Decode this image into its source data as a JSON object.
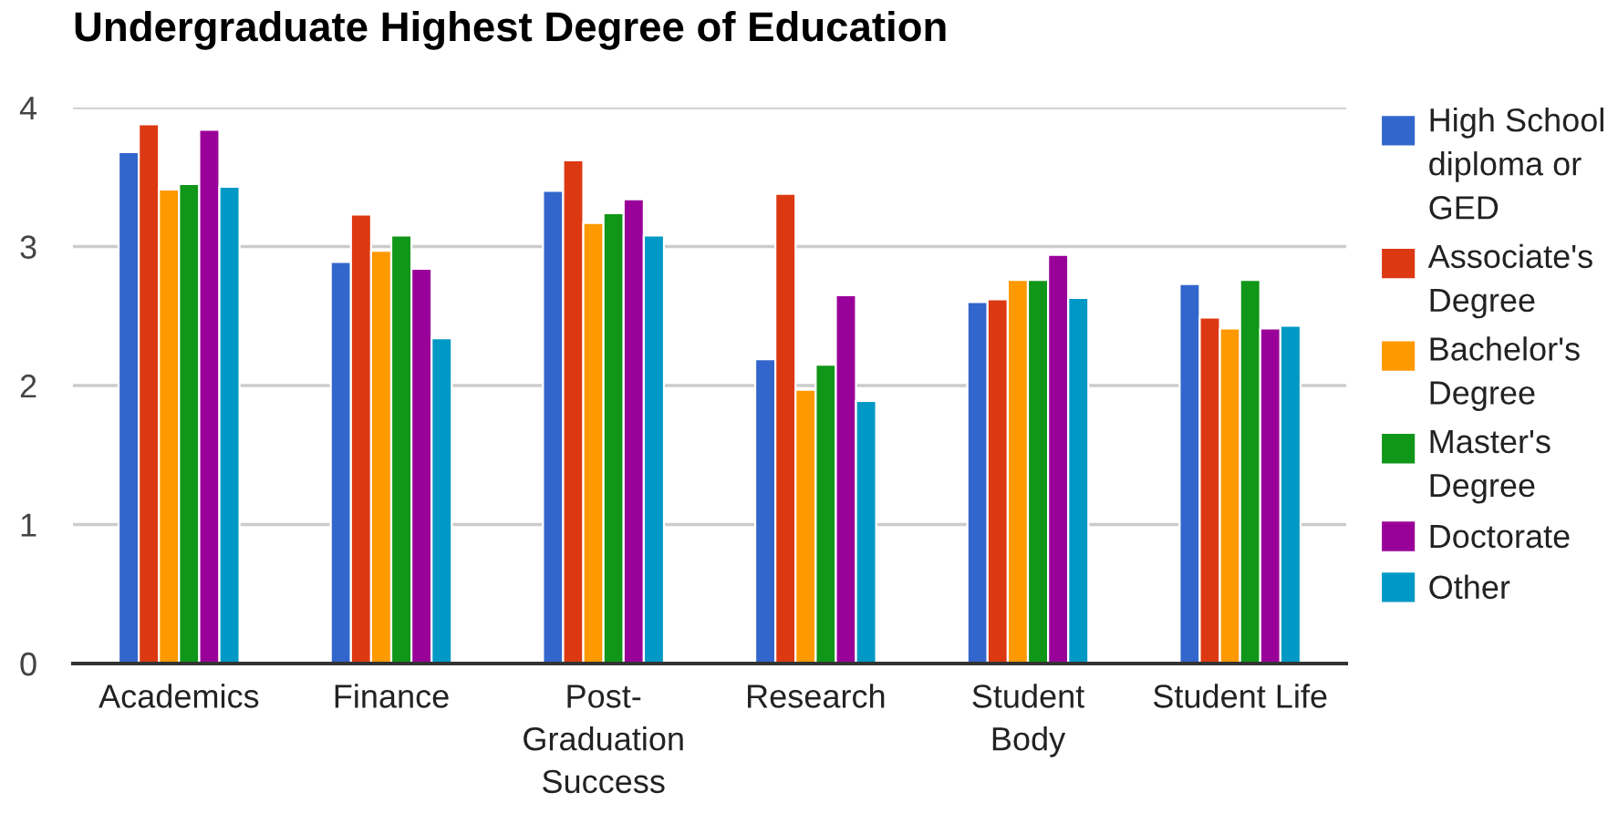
{
  "chart_data": {
    "type": "bar",
    "title": "Undergraduate Highest Degree of Education",
    "categories": [
      "Academics",
      "Finance",
      "Post-Graduation Success",
      "Research",
      "Student Body",
      "Student Life"
    ],
    "series": [
      {
        "name": "High School diploma or GED",
        "color": "#3366cc",
        "values": [
          3.68,
          2.89,
          3.4,
          2.19,
          2.6,
          2.73
        ]
      },
      {
        "name": "Associate's Degree",
        "color": "#dc3912",
        "values": [
          3.88,
          3.23,
          3.62,
          3.38,
          2.62,
          2.49
        ]
      },
      {
        "name": "Bachelor's Degree",
        "color": "#ff9900",
        "values": [
          3.41,
          2.97,
          3.17,
          1.97,
          2.76,
          2.41
        ]
      },
      {
        "name": "Master's Degree",
        "color": "#109618",
        "values": [
          3.45,
          3.08,
          3.24,
          2.15,
          2.76,
          2.76
        ]
      },
      {
        "name": "Doctorate",
        "color": "#990099",
        "values": [
          3.84,
          2.84,
          3.34,
          2.65,
          2.94,
          2.41
        ]
      },
      {
        "name": "Other",
        "color": "#0099c6",
        "values": [
          3.43,
          2.34,
          3.08,
          1.89,
          2.63,
          2.43
        ]
      }
    ],
    "ylim": [
      0,
      4
    ],
    "yticks": [
      0,
      1,
      2,
      3,
      4
    ],
    "grid": "y",
    "legend": "right"
  }
}
